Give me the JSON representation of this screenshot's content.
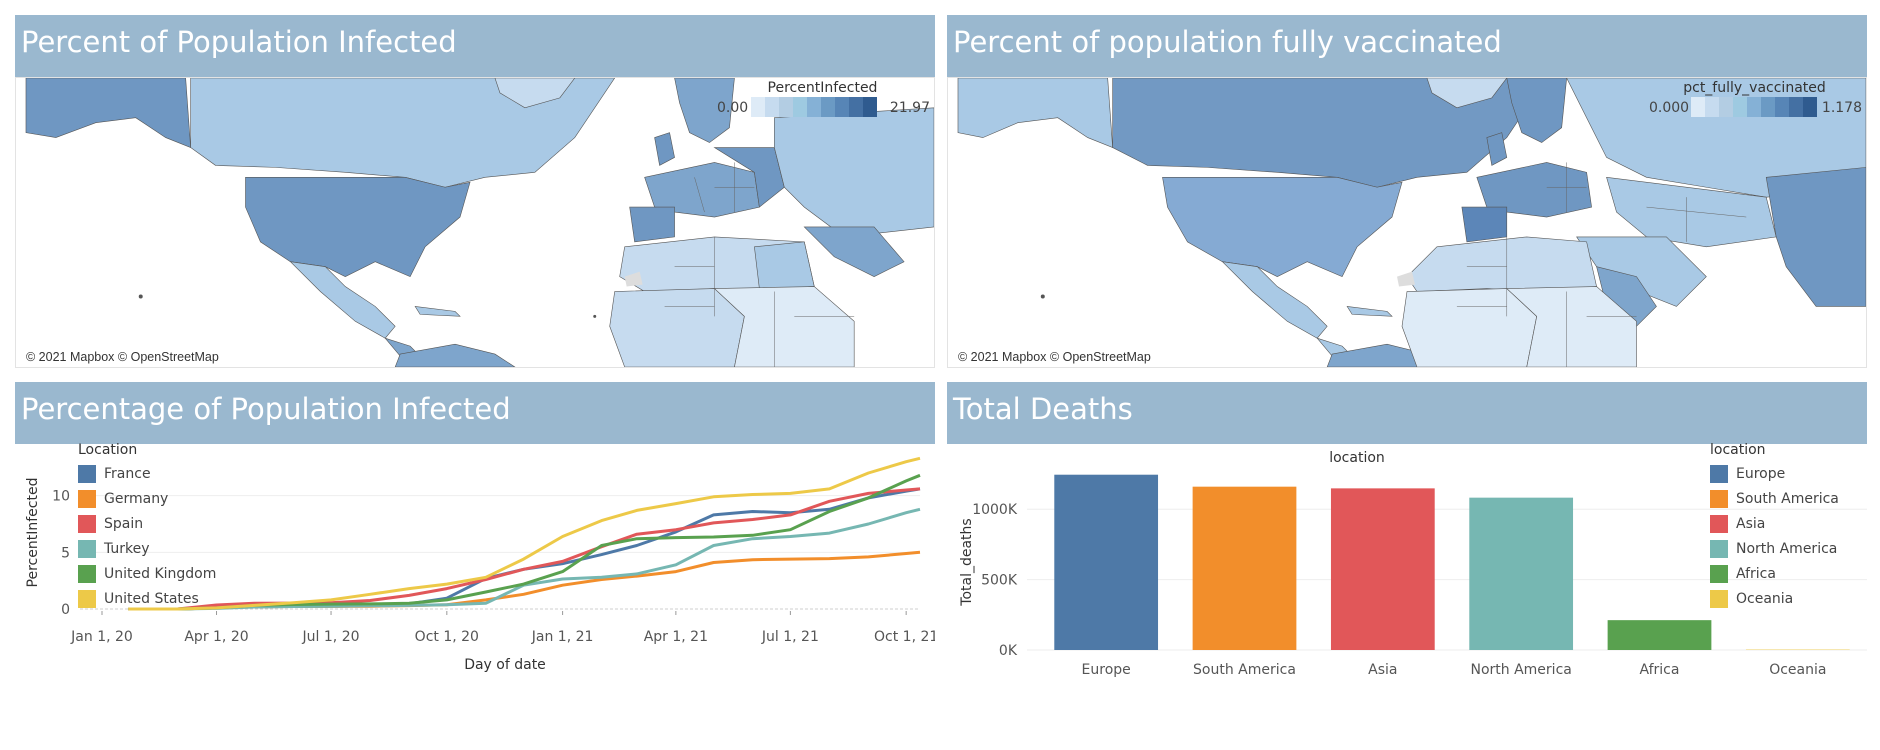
{
  "panels": {
    "infected_map": {
      "title": "Percent of Population Infected",
      "legend_title": "PercentInfected",
      "legend_min": "0.00",
      "legend_max": "21.97",
      "attribution": "© 2021 Mapbox © OpenStreetMap"
    },
    "vaccinated_map": {
      "title": "Percent of population fully vaccinated",
      "legend_title": "pct_fully_vaccinated",
      "legend_min": "0.000",
      "legend_max": "1.178",
      "attribution": "© 2021 Mapbox © OpenStreetMap"
    },
    "infected_line": {
      "title": "Percentage of Population Infected"
    },
    "deaths_bar": {
      "title": "Total Deaths"
    }
  },
  "colors": {
    "header_bg": "#9ab8cf",
    "ramp": [
      "#deebf7",
      "#c6dbef",
      "#b3cde3",
      "#9ecae1",
      "#85b1d6",
      "#6b9ac4",
      "#5785b6",
      "#4470a3",
      "#2f5b8f"
    ],
    "land_light": "#c9def0",
    "land_mid": "#a4c5e2",
    "land_dark": "#7299c3"
  },
  "chart_data": [
    {
      "type": "line",
      "title": "Percentage of Population Infected",
      "xlabel": "Day of date",
      "ylabel": "PercentInfected",
      "x_ticks": [
        "Jan 1, 20",
        "Apr 1, 20",
        "Jul 1, 20",
        "Oct 1, 20",
        "Jan 1, 21",
        "Apr 1, 21",
        "Jul 1, 21",
        "Oct 1, 21"
      ],
      "y_ticks": [
        "0",
        "5",
        "10"
      ],
      "ylim": [
        0,
        13.5
      ],
      "x": [
        "2020-01-22",
        "2020-03-01",
        "2020-04-01",
        "2020-05-01",
        "2020-06-01",
        "2020-07-01",
        "2020-08-01",
        "2020-09-01",
        "2020-10-01",
        "2020-11-01",
        "2020-12-01",
        "2021-01-01",
        "2021-02-01",
        "2021-03-01",
        "2021-04-01",
        "2021-05-01",
        "2021-06-01",
        "2021-07-01",
        "2021-08-01",
        "2021-09-01",
        "2021-10-01",
        "2021-10-12"
      ],
      "legend_title": "Location",
      "legend_position": "top-left",
      "grid": true,
      "series": [
        {
          "name": "France",
          "color": "#4e79a7",
          "values": [
            0,
            0,
            0.1,
            0.2,
            0.23,
            0.25,
            0.28,
            0.45,
            0.95,
            2.7,
            3.5,
            4.0,
            4.8,
            5.6,
            6.8,
            8.3,
            8.6,
            8.5,
            8.8,
            9.8,
            10.4,
            10.6
          ]
        },
        {
          "name": "Germany",
          "color": "#f28e2b",
          "values": [
            0,
            0,
            0.09,
            0.2,
            0.22,
            0.23,
            0.25,
            0.3,
            0.38,
            0.8,
            1.3,
            2.1,
            2.6,
            2.9,
            3.3,
            4.1,
            4.35,
            4.4,
            4.45,
            4.6,
            4.9,
            5.0
          ]
        },
        {
          "name": "Spain",
          "color": "#e15759",
          "values": [
            0,
            0,
            0.35,
            0.5,
            0.52,
            0.55,
            0.75,
            1.2,
            1.8,
            2.6,
            3.5,
            4.2,
            5.5,
            6.6,
            7.0,
            7.6,
            7.9,
            8.3,
            9.5,
            10.2,
            10.5,
            10.6
          ]
        },
        {
          "name": "Turkey",
          "color": "#76b7b2",
          "values": [
            0,
            0,
            0.05,
            0.18,
            0.22,
            0.25,
            0.28,
            0.32,
            0.38,
            0.5,
            2.1,
            2.65,
            2.8,
            3.1,
            3.9,
            5.6,
            6.2,
            6.4,
            6.7,
            7.5,
            8.5,
            8.8
          ]
        },
        {
          "name": "United Kingdom",
          "color": "#59a14f",
          "values": [
            0,
            0,
            0.1,
            0.32,
            0.4,
            0.43,
            0.45,
            0.5,
            0.8,
            1.5,
            2.2,
            3.3,
            5.6,
            6.2,
            6.3,
            6.35,
            6.5,
            7.0,
            8.6,
            9.8,
            11.3,
            11.8
          ]
        },
        {
          "name": "United States",
          "color": "#edc948",
          "values": [
            0,
            0,
            0.1,
            0.32,
            0.55,
            0.8,
            1.3,
            1.8,
            2.2,
            2.8,
            4.4,
            6.4,
            7.8,
            8.7,
            9.3,
            9.9,
            10.1,
            10.2,
            10.6,
            12.0,
            13.0,
            13.3
          ]
        }
      ]
    },
    {
      "type": "bar",
      "title": "Total Deaths",
      "xlabel": "location",
      "ylabel": "Total_deaths",
      "y_ticks": [
        "0K",
        "500K",
        "1000K"
      ],
      "ylim": [
        0,
        1250000
      ],
      "categories": [
        "Europe",
        "South America",
        "Asia",
        "North America",
        "Africa",
        "Oceania"
      ],
      "values": [
        1245000,
        1160000,
        1148000,
        1082000,
        212000,
        3000
      ],
      "colors": [
        "#4e79a7",
        "#f28e2b",
        "#e15759",
        "#76b7b2",
        "#59a14f",
        "#edc948"
      ],
      "legend_title": "location",
      "legend_position": "right",
      "grid": true
    }
  ]
}
